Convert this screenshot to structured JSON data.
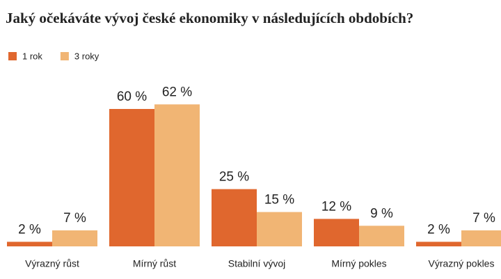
{
  "chart_data": {
    "type": "bar",
    "title": "Jaký očekáváte vývoj české ekonomiky v následujících obdobích?",
    "categories": [
      "Výrazný růst",
      "Mírný růst",
      "Stabilní vývoj",
      "Mírný pokles",
      "Výrazný pokles"
    ],
    "series": [
      {
        "name": "1 rok",
        "color": "#e0672e",
        "values": [
          2,
          60,
          25,
          12,
          2
        ],
        "value_labels": [
          "2 %",
          "60 %",
          "25 %",
          "12 %",
          "2 %"
        ]
      },
      {
        "name": "3 roky",
        "color": "#f1b574",
        "values": [
          7,
          62,
          15,
          9,
          7
        ],
        "value_labels": [
          "7 %",
          "62 %",
          "15 %",
          "9 %",
          "7 %"
        ]
      }
    ],
    "legend": "top-left"
  }
}
